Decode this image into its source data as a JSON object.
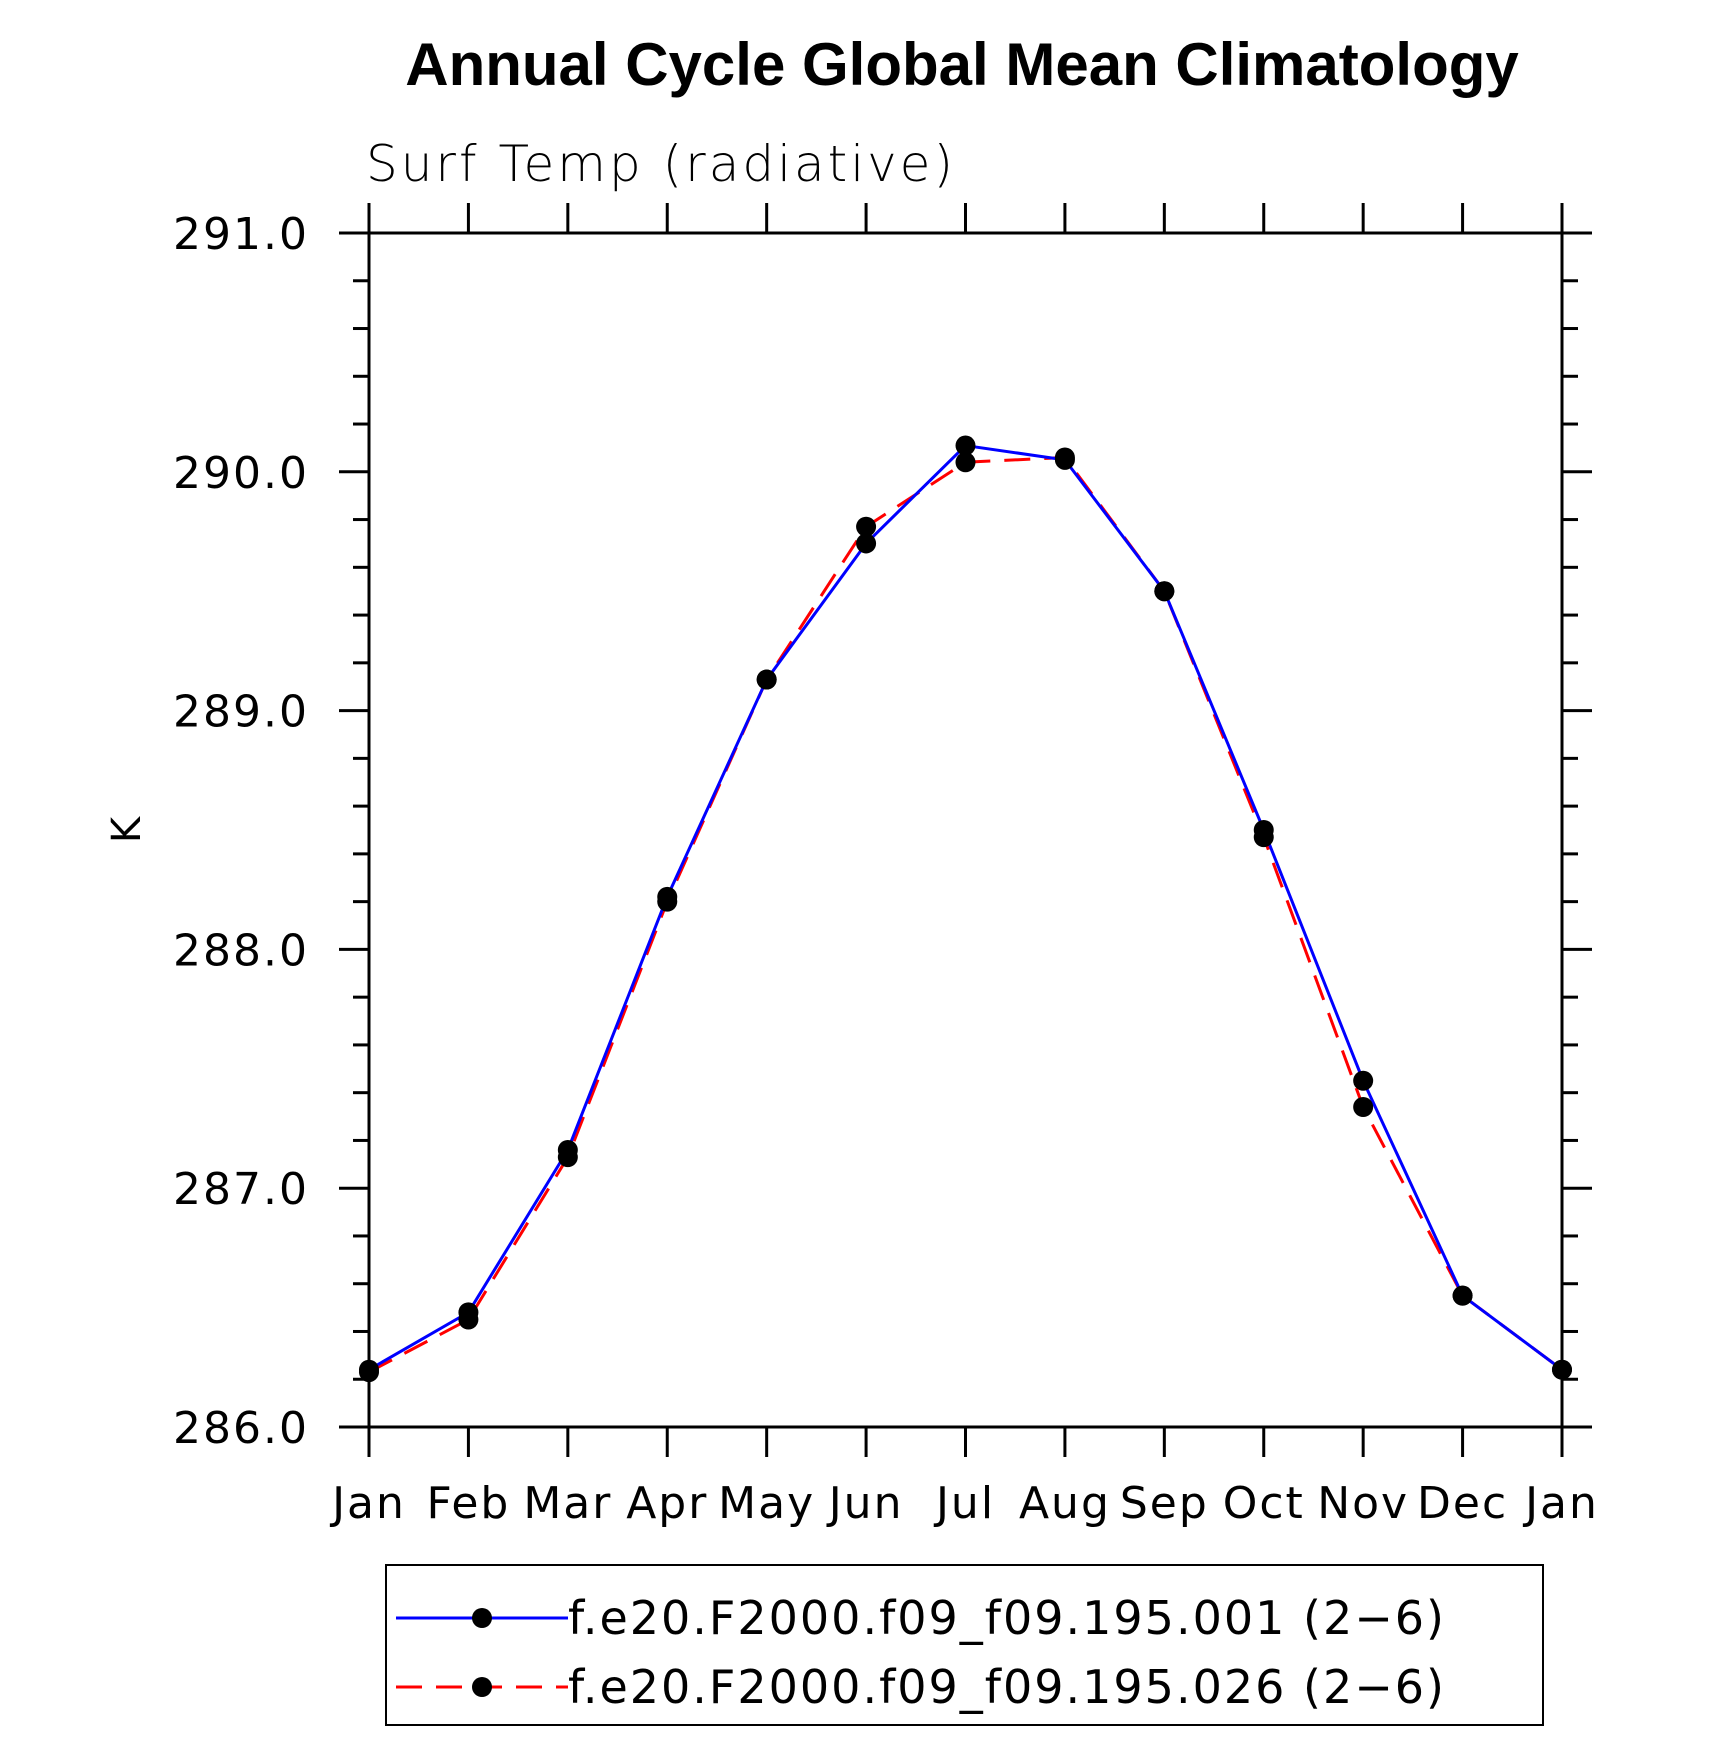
{
  "chart_data": {
    "type": "line",
    "title": "Annual Cycle Global Mean Climatology",
    "subtitle": "Surf Temp (radiative)",
    "xlabel": "",
    "ylabel": "K",
    "categories": [
      "Jan",
      "Feb",
      "Mar",
      "Apr",
      "May",
      "Jun",
      "Jul",
      "Aug",
      "Sep",
      "Oct",
      "Nov",
      "Dec",
      "Jan"
    ],
    "ylim": [
      286.0,
      291.0
    ],
    "yticks": [
      "286.0",
      "287.0",
      "288.0",
      "289.0",
      "290.0",
      "291.0"
    ],
    "grid": false,
    "legend_position": "bottom",
    "series": [
      {
        "name": "f.e20.F2000.f09_f09.195.001 (2−6)",
        "color": "#0000ff",
        "line_style": "solid",
        "marker": "filled-circle",
        "values": [
          286.24,
          286.48,
          287.16,
          288.22,
          289.13,
          289.7,
          290.11,
          290.05,
          289.5,
          288.5,
          287.45,
          286.55,
          286.24
        ]
      },
      {
        "name": "f.e20.F2000.f09_f09.195.026 (2−6)",
        "color": "#ff0000",
        "line_style": "dashed",
        "marker": "filled-circle",
        "values": [
          286.23,
          286.45,
          287.13,
          288.2,
          289.13,
          289.77,
          290.04,
          290.06,
          289.5,
          288.47,
          287.34,
          286.55,
          286.24
        ]
      }
    ]
  }
}
